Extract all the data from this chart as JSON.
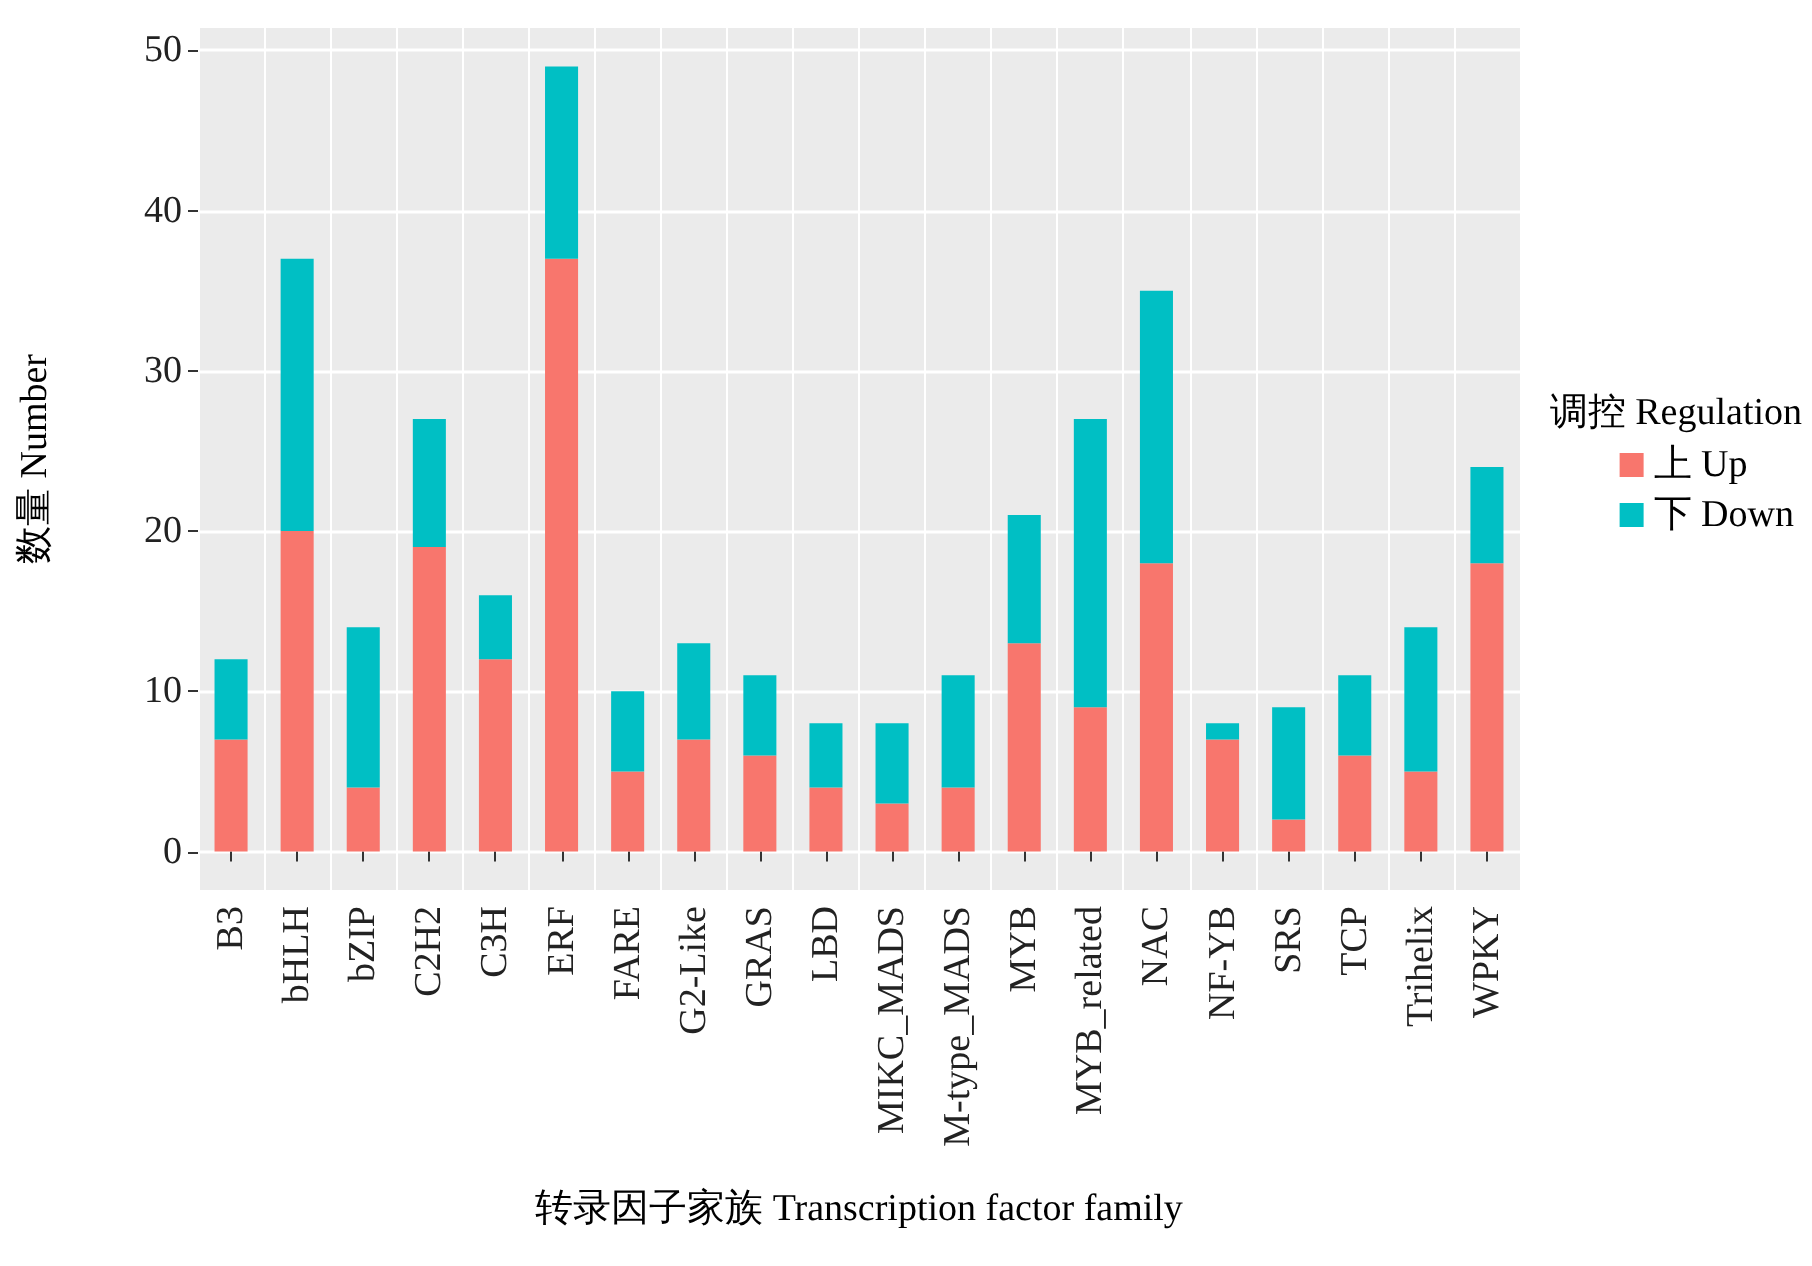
{
  "chart_data": {
    "type": "bar",
    "stacked": true,
    "xlabel": "转录因子家族 Transcription factor family",
    "ylabel": "数量 Number",
    "legend_title": "调控 Regulation",
    "legend": "right",
    "grid": true,
    "categories": [
      "B3",
      "bHLH",
      "bZIP",
      "C2H2",
      "C3H",
      "ERF",
      "FARE",
      "G2-Like",
      "GRAS",
      "LBD",
      "MIKC_MADS",
      "M-type_MADS",
      "MYB",
      "MYB_related",
      "NAC",
      "NF-YB",
      "SRS",
      "TCP",
      "Trihelix",
      "WPKY"
    ],
    "series": [
      {
        "name": "上 Up",
        "color": "#f8766d",
        "values": [
          7,
          20,
          4,
          19,
          12,
          37,
          5,
          7,
          6,
          4,
          3,
          4,
          13,
          9,
          18,
          7,
          2,
          6,
          5,
          18
        ]
      },
      {
        "name": "下 Down",
        "color": "#00bfc4",
        "values": [
          5,
          17,
          10,
          8,
          4,
          12,
          5,
          6,
          5,
          4,
          5,
          7,
          8,
          18,
          17,
          1,
          7,
          5,
          9,
          6
        ]
      }
    ],
    "ylim": [
      -2.4,
      51.4
    ],
    "yticks": [
      0,
      10,
      20,
      30,
      40,
      50
    ]
  }
}
